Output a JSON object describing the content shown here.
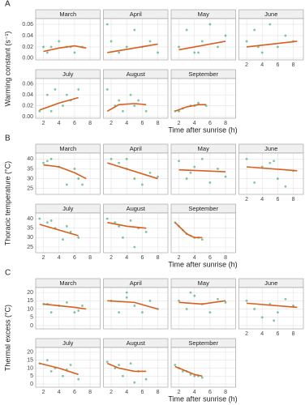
{
  "chart_data": [
    {
      "type": "scatter",
      "panel": "A",
      "xlabel": "Time after sunrise (h)",
      "ylabel": "Warming constant (s⁻¹)",
      "xlim": [
        1,
        9.3
      ],
      "ylim": [
        -0.003,
        0.07
      ],
      "xticks": [
        2,
        4,
        6,
        8
      ],
      "yticks": [
        {
          "value": 0,
          "label": "0.00"
        },
        {
          "value": 0.02,
          "label": "0.02"
        },
        {
          "value": 0.04,
          "label": "0.04"
        },
        {
          "value": 0.06,
          "label": "0.06"
        }
      ],
      "point_color": "#2ca25f",
      "line_color": "#d95f1e",
      "facets": [
        {
          "title": "March",
          "x": [
            2,
            3,
            4,
            5,
            6,
            7,
            2.5,
            5.5
          ],
          "y": [
            0.02,
            0.02,
            0.03,
            0.02,
            0.01,
            0.02,
            0.01,
            0.02
          ],
          "trend": {
            "x": [
              2,
              4,
              6,
              7.5
            ],
            "y": [
              0.012,
              0.018,
              0.022,
              0.018
            ]
          }
        },
        {
          "title": "April",
          "x": [
            1.5,
            2,
            3,
            4,
            5,
            6,
            7,
            8
          ],
          "y": [
            0.06,
            0.03,
            0.01,
            0.02,
            0.05,
            0.02,
            0.03,
            0.01
          ],
          "trend": {
            "x": [
              1.5,
              8
            ],
            "y": [
              0.01,
              0.025
            ]
          }
        },
        {
          "title": "May",
          "x": [
            2,
            3,
            4,
            5,
            6,
            7,
            8,
            4.5
          ],
          "y": [
            0.02,
            0.05,
            0.01,
            0.03,
            0.06,
            0.02,
            0.04,
            0.01
          ],
          "trend": {
            "x": [
              2,
              8
            ],
            "y": [
              0.015,
              0.03
            ]
          }
        },
        {
          "title": "June",
          "x": [
            2,
            3,
            4,
            5,
            6,
            7,
            8,
            3.5
          ],
          "y": [
            0.03,
            0.05,
            0.01,
            0.06,
            0.02,
            0.04,
            0.03,
            0.02
          ],
          "trend": {
            "x": [
              2,
              8.5
            ],
            "y": [
              0.02,
              0.03
            ]
          }
        },
        {
          "title": "July",
          "x": [
            1.5,
            2.5,
            3.5,
            4.5,
            5.5,
            6.5,
            3,
            5
          ],
          "y": [
            0.01,
            0.04,
            0.05,
            0.02,
            0.03,
            0.05,
            0.01,
            0.04
          ],
          "trend": {
            "x": [
              1.5,
              4,
              6.5
            ],
            "y": [
              0.012,
              0.025,
              0.035
            ]
          }
        },
        {
          "title": "August",
          "x": [
            1.5,
            2.5,
            3.5,
            4.5,
            5.5,
            6.5,
            3,
            5
          ],
          "y": [
            0.05,
            0.02,
            0.01,
            0.04,
            0.03,
            0.01,
            0.03,
            0.02
          ],
          "trend": {
            "x": [
              1.5,
              3,
              5,
              6.5
            ],
            "y": [
              0.01,
              0.022,
              0.024,
              0.022
            ]
          }
        },
        {
          "title": "September",
          "x": [
            1.5,
            2.5,
            3.5,
            4.5,
            5.5,
            2,
            4
          ],
          "y": [
            0.01,
            0.015,
            0.02,
            0.025,
            0.02,
            0.01,
            0.02
          ],
          "trend": {
            "x": [
              1.5,
              3,
              4.5,
              5.5
            ],
            "y": [
              0.01,
              0.018,
              0.022,
              0.022
            ]
          }
        }
      ]
    },
    {
      "type": "scatter",
      "panel": "B",
      "xlabel": "Time after sunrise (h)",
      "ylabel": "Thoracic temperature (°C)",
      "xlim": [
        1,
        9.3
      ],
      "ylim": [
        22,
        43
      ],
      "xticks": [
        2,
        4,
        6,
        8
      ],
      "yticks": [
        25,
        30,
        35,
        40
      ],
      "point_color": "#2ca25f",
      "line_color": "#d95f1e",
      "facets": [
        {
          "title": "March",
          "x": [
            2,
            3,
            4,
            5,
            6,
            7,
            2.5,
            6.5
          ],
          "y": [
            38,
            40,
            36,
            27,
            35,
            27,
            39,
            30
          ],
          "trend": {
            "x": [
              2,
              4,
              6,
              7.5
            ],
            "y": [
              37,
              36,
              33,
              30
            ]
          }
        },
        {
          "title": "April",
          "x": [
            2,
            3,
            4,
            5,
            6,
            7,
            8,
            4
          ],
          "y": [
            40,
            38,
            35,
            30,
            27,
            33,
            31,
            40
          ],
          "trend": {
            "x": [
              1.5,
              8
            ],
            "y": [
              38,
              30
            ]
          }
        },
        {
          "title": "May",
          "x": [
            2,
            3,
            4,
            5,
            6,
            7,
            8,
            3.5
          ],
          "y": [
            39,
            30,
            36,
            40,
            28,
            35,
            31,
            33
          ],
          "trend": {
            "x": [
              2,
              8
            ],
            "y": [
              34.5,
              33.5
            ]
          }
        },
        {
          "title": "June",
          "x": [
            2,
            3,
            4,
            5,
            6,
            7,
            8,
            5.5
          ],
          "y": [
            40,
            28,
            36,
            38,
            30,
            26,
            34,
            39
          ],
          "trend": {
            "x": [
              2,
              8.5
            ],
            "y": [
              36,
              34
            ]
          }
        },
        {
          "title": "July",
          "x": [
            1.5,
            2.5,
            3.5,
            4.5,
            5.5,
            6.5,
            3,
            5
          ],
          "y": [
            40,
            38,
            35,
            29,
            33,
            30,
            39,
            36
          ],
          "trend": {
            "x": [
              1.5,
              6.5
            ],
            "y": [
              37,
              31
            ]
          }
        },
        {
          "title": "August",
          "x": [
            1.5,
            2.5,
            3.5,
            4.5,
            5.5,
            6.5,
            3,
            5
          ],
          "y": [
            40,
            38,
            30,
            39,
            35,
            33,
            36,
            25
          ],
          "trend": {
            "x": [
              1.5,
              4,
              6.5
            ],
            "y": [
              38,
              36,
              35
            ]
          }
        },
        {
          "title": "September",
          "x": [
            1.5,
            2,
            2.5,
            3,
            3.5,
            4,
            4.5,
            5
          ],
          "y": [
            38,
            36,
            34,
            32,
            31,
            30,
            30,
            29
          ],
          "trend": {
            "x": [
              1.5,
              3,
              4,
              5
            ],
            "y": [
              38,
              32,
              30,
              30
            ]
          }
        }
      ]
    },
    {
      "type": "scatter",
      "panel": "C",
      "xlabel": "Time after sunrise (h)",
      "ylabel": "Thermal excess (°C)",
      "xlim": [
        1,
        9.3
      ],
      "ylim": [
        -2,
        23
      ],
      "xticks": [
        2,
        4,
        6,
        8
      ],
      "yticks": [
        0,
        5,
        10,
        15,
        20
      ],
      "point_color": "#2ca25f",
      "line_color": "#d95f1e",
      "facets": [
        {
          "title": "March",
          "x": [
            2,
            3,
            4,
            5,
            6,
            7,
            2.5,
            6.5
          ],
          "y": [
            13,
            8,
            12,
            14,
            8,
            12,
            13,
            9
          ],
          "trend": {
            "x": [
              2,
              4,
              6,
              7.5
            ],
            "y": [
              13,
              12,
              11,
              10
            ]
          }
        },
        {
          "title": "April",
          "x": [
            2,
            3,
            4,
            5,
            6,
            7,
            8,
            4
          ],
          "y": [
            15,
            8,
            17,
            12,
            8,
            15,
            10,
            20
          ],
          "trend": {
            "x": [
              1.5,
              5,
              8
            ],
            "y": [
              15,
              14,
              10
            ]
          }
        },
        {
          "title": "May",
          "x": [
            2,
            3,
            4,
            5,
            6,
            7,
            8,
            3.5
          ],
          "y": [
            15,
            10,
            18,
            13,
            8,
            16,
            14,
            20
          ],
          "trend": {
            "x": [
              2,
              5,
              8
            ],
            "y": [
              14,
              13,
              15
            ]
          }
        },
        {
          "title": "June",
          "x": [
            2,
            3,
            4,
            5,
            6,
            7,
            8,
            5.5
          ],
          "y": [
            15,
            10,
            5,
            13,
            8,
            16,
            12,
            3
          ],
          "trend": {
            "x": [
              2,
              8.5
            ],
            "y": [
              13.5,
              11
            ]
          }
        },
        {
          "title": "July",
          "x": [
            1.5,
            2.5,
            3.5,
            4.5,
            5.5,
            6.5,
            3,
            5
          ],
          "y": [
            13,
            15,
            10,
            5,
            12,
            3,
            8,
            9
          ],
          "trend": {
            "x": [
              1.5,
              4,
              6.5
            ],
            "y": [
              13,
              10,
              6
            ]
          }
        },
        {
          "title": "August",
          "x": [
            1.5,
            2.5,
            3.5,
            4.5,
            5.5,
            6.5,
            3,
            5
          ],
          "y": [
            14,
            10,
            5,
            13,
            8,
            3,
            12,
            1
          ],
          "trend": {
            "x": [
              1.5,
              3,
              5,
              6.5
            ],
            "y": [
              13,
              10,
              8,
              8
            ]
          }
        },
        {
          "title": "September",
          "x": [
            1.5,
            2,
            2.5,
            3,
            3.5,
            4,
            4.5,
            5
          ],
          "y": [
            12,
            10,
            8,
            8,
            6,
            5,
            5,
            4
          ],
          "trend": {
            "x": [
              1.5,
              3,
              4,
              5
            ],
            "y": [
              11,
              8,
              6,
              5
            ]
          }
        }
      ]
    }
  ]
}
